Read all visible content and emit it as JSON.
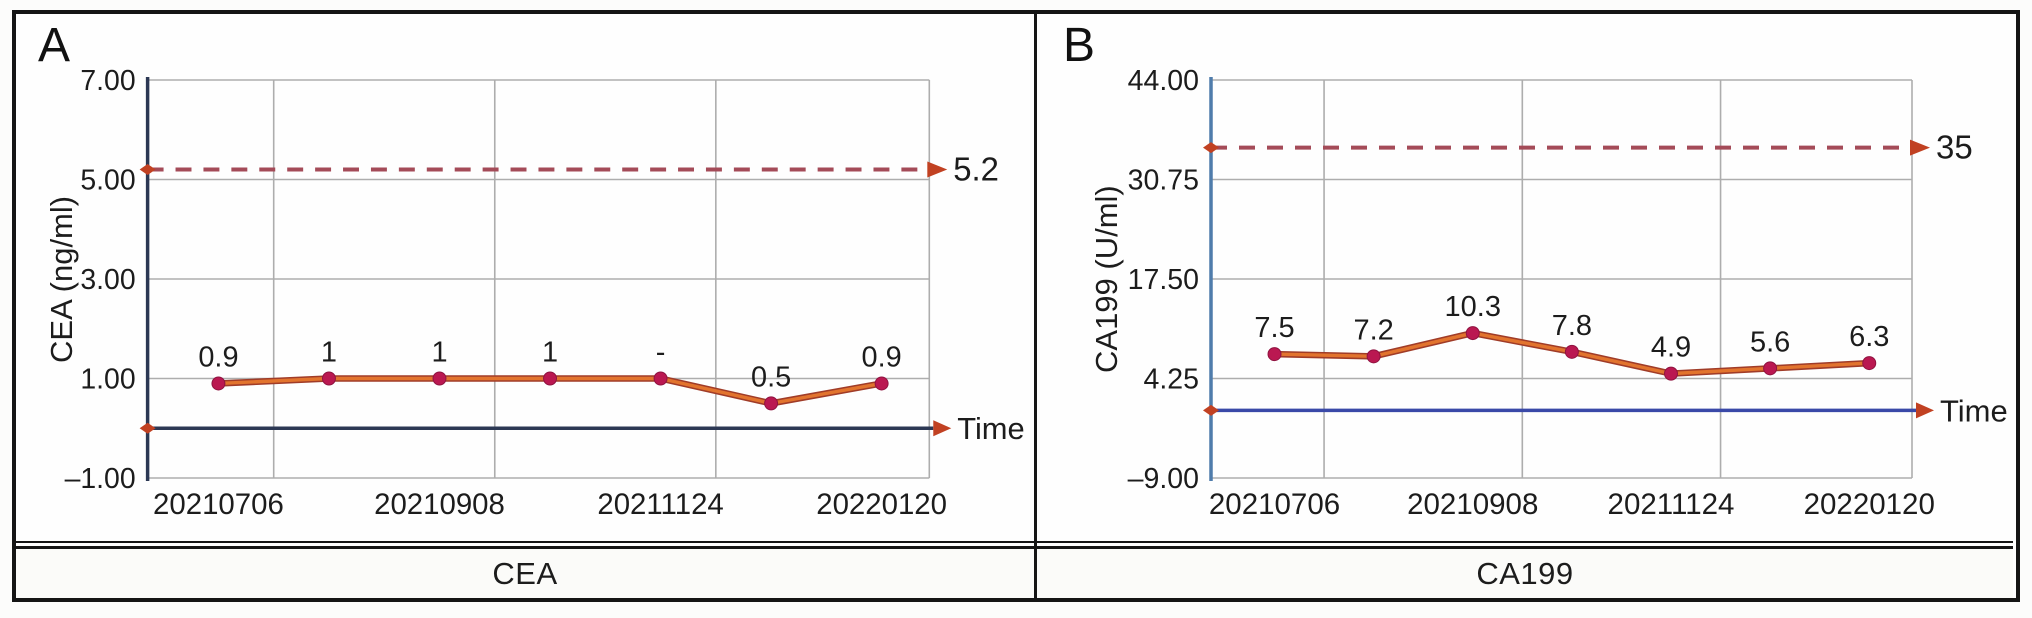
{
  "figure": {
    "border_color": "#151515",
    "panels": [
      {
        "letter": "A",
        "caption": "CEA",
        "y_axis_label": "CEA (ng/ml)",
        "time_label": "Time",
        "ref_label": "5.2",
        "colors": {
          "y_axis": "#2c3854",
          "time_axis": "#2c3854"
        }
      },
      {
        "letter": "B",
        "caption": "CA199",
        "y_axis_label": "CA199 (U/ml)",
        "time_label": "Time",
        "ref_label": "35",
        "colors": {
          "y_axis": "#4f7cab",
          "time_axis": "#3a49a8"
        }
      }
    ],
    "shared_colors": {
      "grid": "#adadad",
      "data_line_core": "#e2742e",
      "data_line_edge": "#a03c28",
      "marker": "#ba1851",
      "ref_dash": "#a44b58",
      "arrow": "#c14122",
      "ref_label_text": "#d8591b",
      "text": "#1c1c1c"
    }
  },
  "chart_data": [
    {
      "type": "line",
      "panel": "A",
      "title": "CEA",
      "ylabel": "CEA (ng/ml)",
      "xlabel": "Time",
      "x_tick_labels": [
        "20210706",
        "20210908",
        "20211124",
        "20220120"
      ],
      "n_points": 7,
      "values": [
        0.9,
        1,
        1,
        1,
        1,
        0.5,
        0.9
      ],
      "point_labels": [
        "0.9",
        "1",
        "1",
        "1",
        "-",
        "0.5",
        "0.9"
      ],
      "ylim": [
        -1,
        7
      ],
      "ytick_values": [
        7,
        5,
        3,
        1,
        -1
      ],
      "ytick_labels": [
        "7.00",
        "5.00",
        "3.00",
        "1.00",
        "–1.00"
      ],
      "reference_line": {
        "value": 5.2,
        "label": "5.2",
        "style": "dashed"
      },
      "time_axis_value": 0,
      "grid": true,
      "legend": false
    },
    {
      "type": "line",
      "panel": "B",
      "title": "CA199",
      "ylabel": "CA199 (U/ml)",
      "xlabel": "Time",
      "x_tick_labels": [
        "20210706",
        "20210908",
        "20211124",
        "20220120"
      ],
      "n_points": 7,
      "values": [
        7.5,
        7.2,
        10.3,
        7.8,
        4.9,
        5.6,
        6.3
      ],
      "point_labels": [
        "7.5",
        "7.2",
        "10.3",
        "7.8",
        "4.9",
        "5.6",
        "6.3"
      ],
      "ylim": [
        -9,
        44
      ],
      "ytick_values": [
        44,
        30.75,
        17.5,
        4.25,
        -9
      ],
      "ytick_labels": [
        "44.00",
        "30.75",
        "17.50",
        "4.25",
        "–9.00"
      ],
      "reference_line": {
        "value": 35,
        "label": "35",
        "style": "dashed"
      },
      "time_axis_value": 0,
      "grid": true,
      "legend": false
    }
  ]
}
